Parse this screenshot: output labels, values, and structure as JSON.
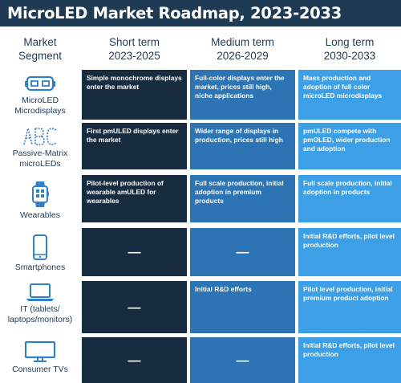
{
  "title": "MicroLED Market Roadmap, 2023-2033",
  "columns": {
    "segment": {
      "line1": "Market",
      "line2": "Segment"
    },
    "short": {
      "line1": "Short term",
      "line2": "2023-2025"
    },
    "medium": {
      "line1": "Medium term",
      "line2": "2026-2029"
    },
    "long": {
      "line1": "Long term",
      "line2": "2030-2033"
    }
  },
  "rows": [
    {
      "label": "MicroLED\nMicrodisplays",
      "icon": "vr-headset-icon",
      "short": "Simple monochrome displays enter the market",
      "medium": "Full-color displays enter the market, prices still high, niche applications",
      "long": "Mass production and adoption of full color microLED microdisplays"
    },
    {
      "label": "Passive-Matrix\nmicroLEDs",
      "icon": "abc-display-icon",
      "short": "First pmULED displays enter the market",
      "medium": "Wider range of displays in production, prices still high",
      "long": "pmULED compete with pmOLED, wider production and adoption"
    },
    {
      "label": "Wearables",
      "icon": "smartwatch-icon",
      "short": "Pilot-level production of wearable amULED for wearables",
      "medium": "Full scale production, initial adoption in premium products",
      "long": "Full scale production, initial adoption in products"
    },
    {
      "label": "Smartphones",
      "icon": "smartphone-icon",
      "short": "—",
      "medium": "—",
      "long": "Initial R&D efforts, pilot level production"
    },
    {
      "label": "IT (tablets/\nlaptops/monitors)",
      "icon": "laptop-icon",
      "short": "—",
      "medium": "Initial R&D efforts",
      "long": "Pilot level production, initial premium product adoption"
    },
    {
      "label": "Consumer TVs",
      "icon": "tv-icon",
      "short": "—",
      "medium": "—",
      "long": "Initial R&D efforts, pilot level production"
    }
  ],
  "colors": {
    "title_bg": "#1f3a54",
    "short_term": "#172d3f",
    "medium_term": "#2c74b3",
    "long_term": "#3da0e6",
    "icon": "#2f80c8"
  }
}
